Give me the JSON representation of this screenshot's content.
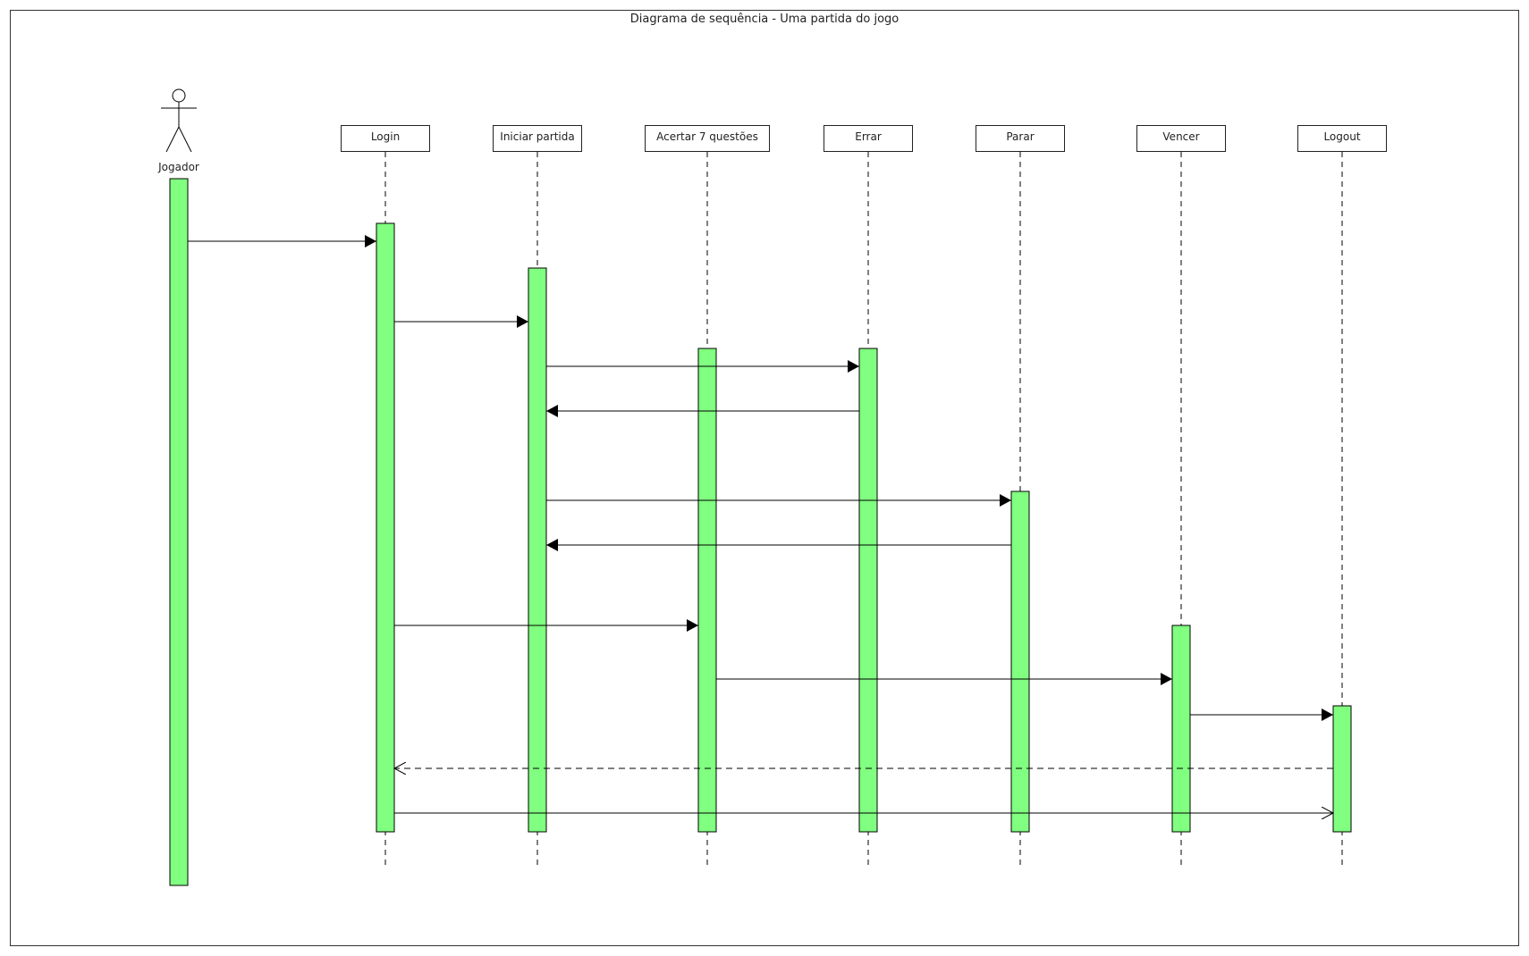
{
  "diagram": {
    "title": "Diagrama de sequência - Uma partida do jogo",
    "actor": {
      "label": "Jogador"
    },
    "lifelines": [
      {
        "id": "login",
        "label": "Login"
      },
      {
        "id": "iniciar",
        "label": "Iniciar partida"
      },
      {
        "id": "acertar",
        "label": "Acertar 7 questões"
      },
      {
        "id": "errar",
        "label": "Errar"
      },
      {
        "id": "parar",
        "label": "Parar"
      },
      {
        "id": "vencer",
        "label": "Vencer"
      },
      {
        "id": "logout",
        "label": "Logout"
      }
    ],
    "messages": [
      {
        "from": "jogador",
        "to": "login",
        "kind": "sync"
      },
      {
        "from": "login",
        "to": "iniciar",
        "kind": "sync"
      },
      {
        "from": "iniciar",
        "to": "errar",
        "kind": "sync"
      },
      {
        "from": "errar",
        "to": "iniciar",
        "kind": "sync"
      },
      {
        "from": "iniciar",
        "to": "parar",
        "kind": "sync"
      },
      {
        "from": "parar",
        "to": "iniciar",
        "kind": "sync"
      },
      {
        "from": "login",
        "to": "acertar",
        "kind": "sync"
      },
      {
        "from": "acertar",
        "to": "vencer",
        "kind": "sync"
      },
      {
        "from": "vencer",
        "to": "logout",
        "kind": "sync"
      },
      {
        "from": "logout",
        "to": "login",
        "kind": "return"
      },
      {
        "from": "login",
        "to": "logout",
        "kind": "async"
      }
    ],
    "colors": {
      "activation": "#80ff80",
      "line": "#000000"
    }
  }
}
